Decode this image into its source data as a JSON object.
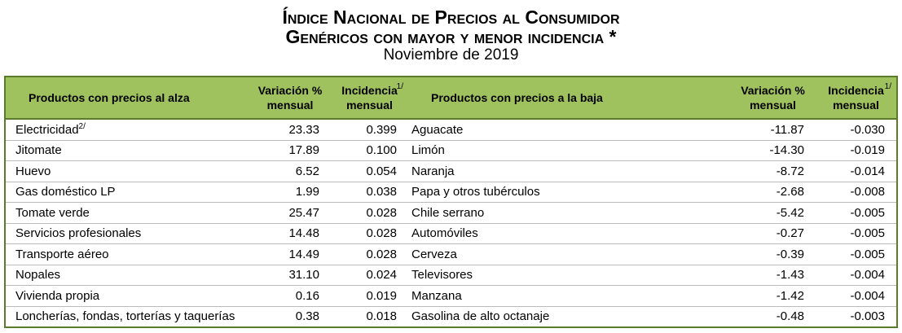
{
  "header": {
    "title": "Índice Nacional de Precios al Consumidor",
    "subtitle": "Genéricos con mayor y menor incidencia *",
    "date": "Noviembre de 2019"
  },
  "table": {
    "columns": [
      {
        "text": "Productos con precios al alza"
      },
      {
        "text": "Variación % mensual"
      },
      {
        "text": "Incidencia mensual",
        "note": "1/"
      },
      {
        "text": "Productos con precios a la baja"
      },
      {
        "text": "Variación % mensual"
      },
      {
        "text": "Incidencia mensual",
        "note": "1/"
      }
    ],
    "rows": [
      [
        {
          "text": "Electricidad",
          "note": "2/"
        },
        "23.33",
        "0.399",
        "Aguacate",
        "-11.87",
        "-0.030"
      ],
      [
        "Jitomate",
        "17.89",
        "0.100",
        "Limón",
        "-14.30",
        "-0.019"
      ],
      [
        "Huevo",
        "6.52",
        "0.054",
        "Naranja",
        "-8.72",
        "-0.014"
      ],
      [
        "Gas doméstico LP",
        "1.99",
        "0.038",
        "Papa y otros tubérculos",
        "-2.68",
        "-0.008"
      ],
      [
        "Tomate verde",
        "25.47",
        "0.028",
        "Chile serrano",
        "-5.42",
        "-0.005"
      ],
      [
        "Servicios profesionales",
        "14.48",
        "0.028",
        "Automóviles",
        "-0.27",
        "-0.005"
      ],
      [
        "Transporte aéreo",
        "14.49",
        "0.028",
        "Cerveza",
        "-0.39",
        "-0.005"
      ],
      [
        "Nopales",
        "31.10",
        "0.024",
        "Televisores",
        "-1.43",
        "-0.004"
      ],
      [
        "Vivienda propia",
        "0.16",
        "0.019",
        "Manzana",
        "-1.42",
        "-0.004"
      ],
      [
        "Loncherías, fondas, torterías y taquerías",
        "0.38",
        "0.018",
        "Gasolina de alto octanaje",
        "-0.48",
        "-0.003"
      ]
    ]
  }
}
